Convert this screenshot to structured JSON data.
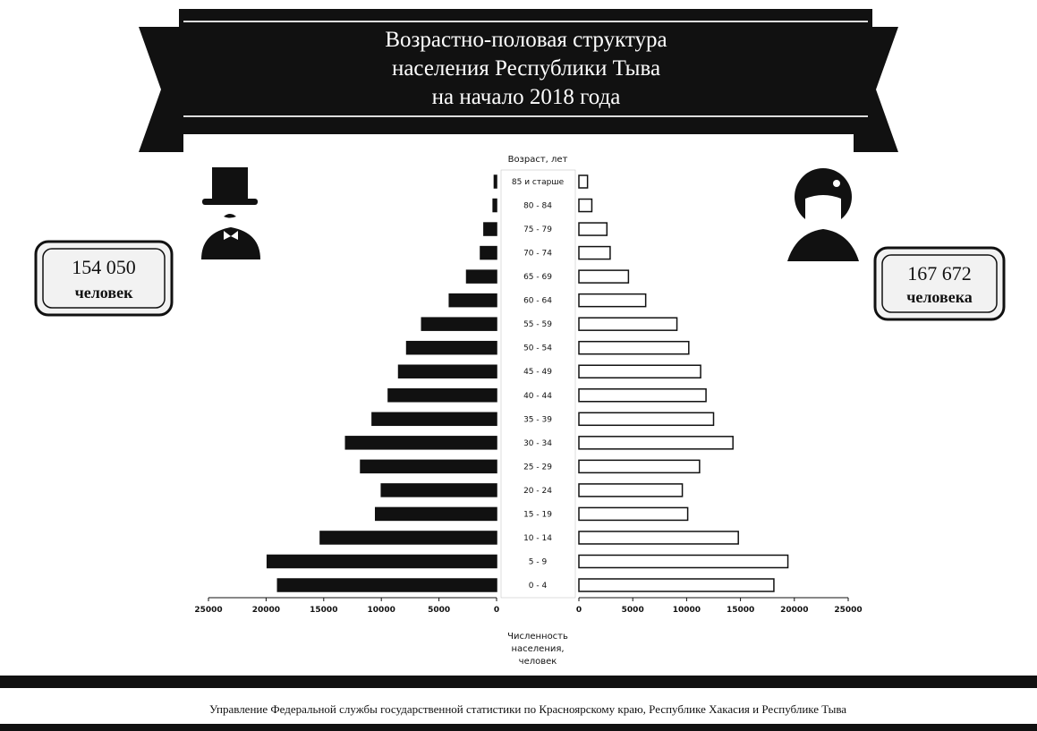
{
  "header": {
    "title": [
      "Возрастно-половая структура",
      "населения Республики Тыва",
      "на начало 2018 года"
    ]
  },
  "chart_data": {
    "type": "pyramid",
    "y_label": "Возраст, лет",
    "x_label": [
      "Численность",
      "населения,",
      "человек"
    ],
    "categories": [
      "0 - 4",
      "5 - 9",
      "10 - 14",
      "15 - 19",
      "20 - 24",
      "25 - 29",
      "30 - 34",
      "35 - 39",
      "40 - 44",
      "45 - 49",
      "50 - 54",
      "55 - 59",
      "60 - 64",
      "65 - 69",
      "70 - 74",
      "75 - 79",
      "80 - 84",
      "85 и старше"
    ],
    "series": [
      {
        "color": "#111111",
        "side": "left",
        "values": [
          19000,
          19900,
          15300,
          10500,
          10000,
          11800,
          13100,
          10800,
          9400,
          8500,
          7800,
          6500,
          4100,
          2600,
          1400,
          1100,
          300,
          200
        ]
      },
      {
        "color": "#ffffff",
        "side": "right",
        "values": [
          18100,
          19400,
          14800,
          10100,
          9600,
          11200,
          14300,
          12500,
          11800,
          11300,
          10200,
          9100,
          6200,
          4600,
          2900,
          2600,
          1200,
          800
        ]
      }
    ],
    "xlim": [
      0,
      25000
    ],
    "xticks": [
      0,
      5000,
      10000,
      15000,
      20000,
      25000
    ],
    "annotations": [
      {
        "value": "154 050",
        "unit": "человек"
      },
      {
        "value": "167 672",
        "unit": "человека"
      }
    ]
  },
  "footer": "Управление Федеральной службы государственной статистики по Красноярскому краю, Республике Хакасия и Республике Тыва"
}
